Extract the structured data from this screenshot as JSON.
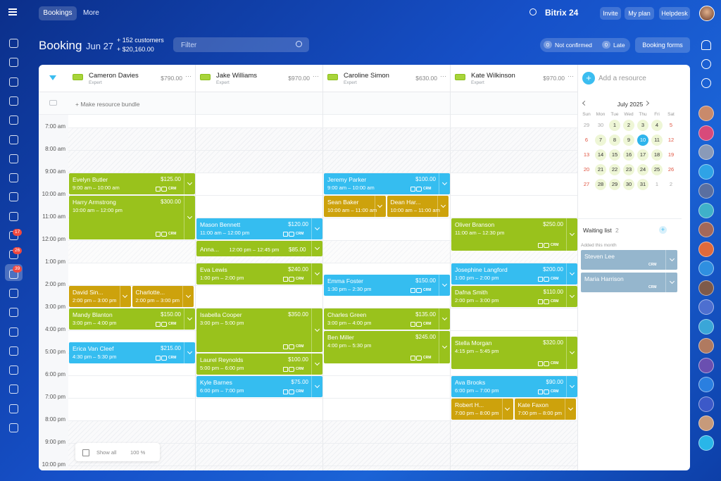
{
  "topbar": {
    "tabs": [
      "Bookings",
      "More"
    ],
    "brand": "Bitrix 24",
    "actions": [
      "Invite",
      "My plan",
      "Helpdesk"
    ]
  },
  "sidebar": {
    "badges": [
      "17",
      "26",
      "39"
    ]
  },
  "header": {
    "title": "Booking",
    "date": "Jun 27",
    "customers": "+ 152 customers",
    "revenue": "+ $20,160.00",
    "filter": "Filter",
    "not_confirmed": {
      "count": "0",
      "label": "Not confirmed"
    },
    "late": {
      "count": "0",
      "label": "Late"
    },
    "forms": "Booking forms"
  },
  "add_resource": "Add a resource",
  "bundle": "+ Make resource bundle",
  "crm": "CRM",
  "times": [
    "7:00 am",
    "8:00 am",
    "9:00 am",
    "10:00 am",
    "11:00 am",
    "12:00 pm",
    "1:00 pm",
    "2:00 pm",
    "3:00 pm",
    "4:00 pm",
    "5:00 pm",
    "6:00 pm",
    "7:00 pm",
    "8:00 pm",
    "9:00 pm",
    "10:00 pm"
  ],
  "resources": [
    {
      "name": "Cameron Davies",
      "role": "Expert",
      "amount": "$790.00",
      "bookings": [
        {
          "name": "Evelyn Butler",
          "price": "$125.00",
          "time": "9:00 am – 10:00 am",
          "color": "#99c21c"
        },
        {
          "name": "Harry Armstrong",
          "price": "$300.00",
          "time": "10:00 am – 12:00 pm",
          "color": "#99c21c"
        },
        {
          "name": "David Sin...",
          "time": "2:00 pm – 3:00 pm",
          "color": "#cda20c"
        },
        {
          "name": "Charlotte...",
          "time": "2:00 pm – 3:00 pm",
          "color": "#cda20c"
        },
        {
          "name": "Mandy Blanton",
          "price": "$150.00",
          "time": "3:00 pm – 4:00 pm",
          "color": "#99c21c"
        },
        {
          "name": "Erica Van Cleef",
          "price": "$215.00",
          "time": "4:30 pm – 5:30 pm",
          "color": "#35bdf0"
        }
      ]
    },
    {
      "name": "Jake Williams",
      "role": "Expert",
      "amount": "$970.00",
      "bookings": [
        {
          "name": "Mason Bennett",
          "price": "$120.00",
          "time": "11:00 am – 12:00 pm",
          "color": "#35bdf0"
        },
        {
          "name": "Anna...",
          "price": "$85.00",
          "time": "12:00 pm – 12:45 pm",
          "color": "#99c21c"
        },
        {
          "name": "Eva Lewis",
          "price": "$240.00",
          "time": "1:00 pm – 2:00 pm",
          "color": "#99c21c"
        },
        {
          "name": "Isabella Cooper",
          "price": "$350.00",
          "time": "3:00 pm – 5:00 pm",
          "color": "#99c21c"
        },
        {
          "name": "Laurel Reynolds",
          "price": "$100.00",
          "time": "5:00 pm – 6:00 pm",
          "color": "#99c21c"
        },
        {
          "name": "Kyle Barnes",
          "price": "$75.00",
          "time": "6:00 pm – 7:00 pm",
          "color": "#35bdf0"
        }
      ]
    },
    {
      "name": "Caroline Simon",
      "role": "Expert",
      "amount": "$630.00",
      "bookings": [
        {
          "name": "Jeremy Parker",
          "price": "$100.00",
          "time": "9:00 am – 10:00 am",
          "color": "#35bdf0"
        },
        {
          "name": "Sean Baker",
          "time": "10:00 am – 11:00 am",
          "color": "#cda20c"
        },
        {
          "name": "Dean Har...",
          "time": "10:00 am – 11:00 am",
          "color": "#cda20c"
        },
        {
          "name": "Emma Foster",
          "price": "$150.00",
          "time": "1:30 pm – 2:30 pm",
          "color": "#35bdf0"
        },
        {
          "name": "Charles Green",
          "price": "$135.00",
          "time": "3:00 pm – 4:00 pm",
          "color": "#99c21c"
        },
        {
          "name": "Ben Miller",
          "price": "$245.00",
          "time": "4:00 pm – 5:30 pm",
          "color": "#99c21c"
        }
      ]
    },
    {
      "name": "Kate Wilkinson",
      "role": "Expert",
      "amount": "$970.00",
      "bookings": [
        {
          "name": "Oliver Branson",
          "price": "$250.00",
          "time": "11:00 am – 12:30 pm",
          "color": "#99c21c"
        },
        {
          "name": "Josephine Langford",
          "price": "$200.00",
          "time": "1:00 pm – 2:00 pm",
          "color": "#35bdf0"
        },
        {
          "name": "Dafna Smith",
          "price": "$110.00",
          "time": "2:00 pm – 3:00 pm",
          "color": "#99c21c"
        },
        {
          "name": "Stella Morgan",
          "price": "$320.00",
          "time": "4:15 pm – 5:45 pm",
          "color": "#99c21c"
        },
        {
          "name": "Ava Brooks",
          "price": "$90.00",
          "time": "6:00 pm – 7:00 pm",
          "color": "#35bdf0"
        },
        {
          "name": "Robert H...",
          "time": "7:00 pm – 8:00 pm",
          "color": "#cda20c"
        },
        {
          "name": "Kate Faxon",
          "time": "7:00 pm – 8:00 pm",
          "color": "#cda20c"
        }
      ]
    }
  ],
  "calendar": {
    "month": "July 2025",
    "weekdays": [
      "Sun",
      "Mon",
      "Tue",
      "Wed",
      "Thu",
      "Fri",
      "Sat"
    ],
    "days": [
      "29",
      "30",
      "1",
      "2",
      "3",
      "4",
      "5",
      "6",
      "7",
      "8",
      "9",
      "10",
      "11",
      "12",
      "13",
      "14",
      "15",
      "16",
      "17",
      "18",
      "19",
      "20",
      "21",
      "22",
      "23",
      "24",
      "25",
      "26",
      "27",
      "28",
      "29",
      "30",
      "31",
      "1",
      "2"
    ]
  },
  "waiting": {
    "title": "Waiting list",
    "count": "2",
    "subtitle": "Added this month",
    "items": [
      "Steven Lee",
      "Maria Harrison"
    ]
  },
  "footer": {
    "show_all": "Show all",
    "zoom": "100 %"
  }
}
